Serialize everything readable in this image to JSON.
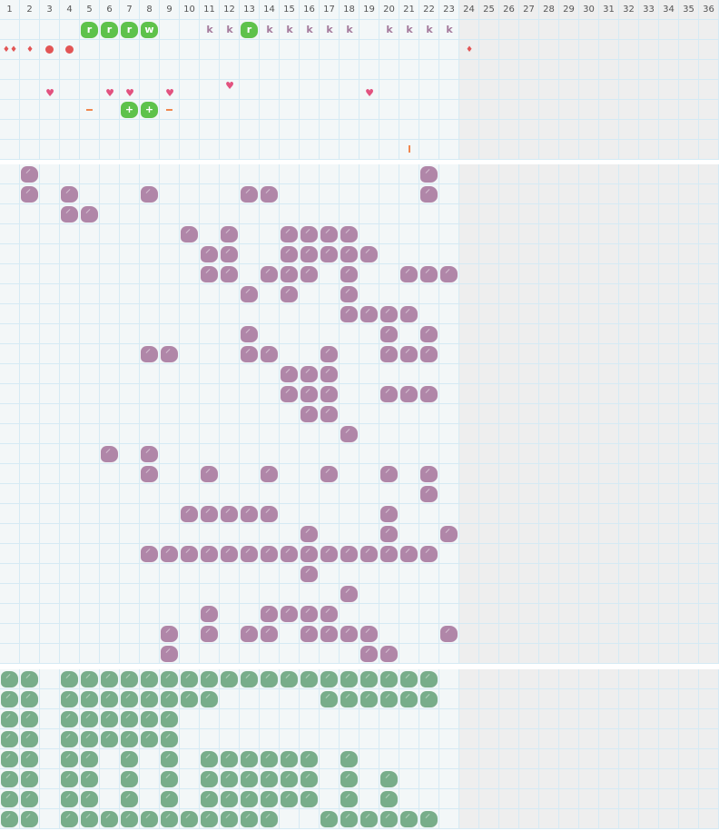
{
  "header": {
    "columns": [
      "1",
      "2",
      "3",
      "4",
      "5",
      "6",
      "7",
      "8",
      "9",
      "10",
      "11",
      "12",
      "13",
      "14",
      "15",
      "16",
      "17",
      "18",
      "19",
      "20",
      "21",
      "22",
      "23",
      "24",
      "25",
      "26",
      "27",
      "28",
      "29",
      "30",
      "31",
      "32",
      "33",
      "34",
      "35",
      "36"
    ]
  },
  "active_columns": 23,
  "colors": {
    "grid_bg": "#f3f7f8",
    "grid_line": "#d5eaf4",
    "inactive_bg": "#eeeeee",
    "purple": "#b086a8",
    "sage": "#78ad8a",
    "lime": "#5ec24b",
    "heart": "#e2527f",
    "drop": "#e25555",
    "orange": "#f0874f"
  },
  "top_section": {
    "rows": 7,
    "items": [
      {
        "row": 1,
        "col": 5,
        "type": "lime-tile",
        "label": "r"
      },
      {
        "row": 1,
        "col": 6,
        "type": "lime-tile",
        "label": "r"
      },
      {
        "row": 1,
        "col": 7,
        "type": "lime-tile",
        "label": "r"
      },
      {
        "row": 1,
        "col": 8,
        "type": "lime-tile",
        "label": "w"
      },
      {
        "row": 1,
        "col": 11,
        "type": "letter",
        "label": "k"
      },
      {
        "row": 1,
        "col": 12,
        "type": "letter",
        "label": "k"
      },
      {
        "row": 1,
        "col": 13,
        "type": "lime-tile",
        "label": "r"
      },
      {
        "row": 1,
        "col": 14,
        "type": "letter",
        "label": "k"
      },
      {
        "row": 1,
        "col": 15,
        "type": "letter",
        "label": "k"
      },
      {
        "row": 1,
        "col": 16,
        "type": "letter",
        "label": "k"
      },
      {
        "row": 1,
        "col": 17,
        "type": "letter",
        "label": "k"
      },
      {
        "row": 1,
        "col": 18,
        "type": "letter",
        "label": "k"
      },
      {
        "row": 1,
        "col": 20,
        "type": "letter",
        "label": "k"
      },
      {
        "row": 1,
        "col": 21,
        "type": "letter",
        "label": "k"
      },
      {
        "row": 1,
        "col": 22,
        "type": "letter",
        "label": "k"
      },
      {
        "row": 1,
        "col": 23,
        "type": "letter",
        "label": "k"
      },
      {
        "row": 2,
        "col": 1,
        "type": "drop",
        "label": "♦♦"
      },
      {
        "row": 2,
        "col": 2,
        "type": "drop",
        "label": "♦"
      },
      {
        "row": 2,
        "col": 3,
        "type": "dot"
      },
      {
        "row": 2,
        "col": 4,
        "type": "dot"
      },
      {
        "row": 2,
        "col": 24,
        "type": "drop",
        "label": "♦"
      },
      {
        "row": 4,
        "col": 3,
        "type": "heart",
        "label": "♥"
      },
      {
        "row": 4,
        "col": 6,
        "type": "heart",
        "label": "♥"
      },
      {
        "row": 4,
        "col": 7,
        "type": "heart",
        "label": "♥"
      },
      {
        "row": 4,
        "col": 9,
        "type": "heart",
        "label": "♥"
      },
      {
        "row": 4,
        "col": 12,
        "type": "heart",
        "label": "♥",
        "raised": true
      },
      {
        "row": 4,
        "col": 19,
        "type": "heart",
        "label": "♥"
      },
      {
        "row": 5,
        "col": 5,
        "type": "dash"
      },
      {
        "row": 5,
        "col": 7,
        "type": "lime-tile",
        "label": "+"
      },
      {
        "row": 5,
        "col": 8,
        "type": "lime-tile",
        "label": "+"
      },
      {
        "row": 5,
        "col": 9,
        "type": "dash"
      },
      {
        "row": 7,
        "col": 21,
        "type": "bar"
      }
    ]
  },
  "middle_section": {
    "rows": 25,
    "tile": "purple",
    "filled": [
      [
        2,
        22
      ],
      [
        2,
        4,
        8,
        13,
        14,
        22
      ],
      [
        4,
        5
      ],
      [
        10,
        12,
        15,
        16,
        17,
        18
      ],
      [
        11,
        12,
        15,
        16,
        17,
        18,
        19
      ],
      [
        11,
        12,
        14,
        15,
        16,
        18,
        21,
        22,
        23
      ],
      [
        13,
        15,
        18
      ],
      [
        18,
        19,
        20,
        21
      ],
      [
        13,
        20,
        22
      ],
      [
        8,
        9,
        13,
        14,
        17,
        20,
        21,
        22
      ],
      [
        15,
        16,
        17
      ],
      [
        15,
        16,
        17,
        20,
        21,
        22
      ],
      [
        16,
        17
      ],
      [
        18
      ],
      [
        6,
        8
      ],
      [
        8,
        11,
        14,
        17,
        20,
        22
      ],
      [
        22
      ],
      [
        10,
        11,
        12,
        13,
        14,
        20
      ],
      [
        16,
        20,
        23
      ],
      [
        8,
        9,
        10,
        11,
        12,
        13,
        14,
        15,
        16,
        17,
        18,
        19,
        20,
        21,
        22
      ],
      [
        16
      ],
      [
        18
      ],
      [
        11,
        14,
        15,
        16,
        17
      ],
      [
        9,
        11,
        13,
        14,
        16,
        17,
        18,
        19,
        23
      ],
      [
        9,
        19,
        20
      ]
    ]
  },
  "bottom_section": {
    "rows": 8,
    "tile": "sage",
    "filled": [
      [
        1,
        2,
        4,
        5,
        6,
        7,
        8,
        9,
        10,
        11,
        12,
        13,
        14,
        15,
        16,
        17,
        18,
        19,
        20,
        21,
        22
      ],
      [
        1,
        2,
        4,
        5,
        6,
        7,
        8,
        9,
        10,
        11,
        17,
        18,
        19,
        20,
        21,
        22
      ],
      [
        1,
        2,
        4,
        5,
        6,
        7,
        8,
        9
      ],
      [
        1,
        2,
        4,
        5,
        6,
        7,
        8,
        9
      ],
      [
        1,
        2,
        4,
        5,
        7,
        9,
        11,
        12,
        13,
        14,
        15,
        16,
        18
      ],
      [
        1,
        2,
        4,
        5,
        7,
        9,
        11,
        12,
        13,
        14,
        15,
        16,
        18,
        20
      ],
      [
        1,
        2,
        4,
        5,
        7,
        9,
        11,
        12,
        13,
        14,
        15,
        16,
        18,
        20
      ],
      [
        1,
        2,
        4,
        5,
        6,
        7,
        8,
        9,
        10,
        11,
        12,
        13,
        14,
        17,
        18,
        19,
        20,
        21,
        22
      ]
    ]
  }
}
